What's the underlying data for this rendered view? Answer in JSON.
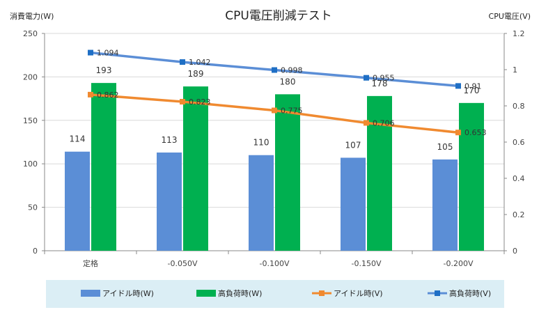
{
  "chart_data": {
    "type": "bar+line",
    "title": "CPU電圧削減テスト",
    "categories": [
      "定格",
      "-0.050V",
      "-0.100V",
      "-0.150V",
      "-0.200V"
    ],
    "y_left": {
      "label": "消費電力(W)",
      "min": 0,
      "max": 250,
      "step": 50,
      "ticks": [
        "0",
        "50",
        "100",
        "150",
        "200",
        "250"
      ]
    },
    "y_right": {
      "label": "CPU電圧(V)",
      "min": 0,
      "max": 1.2,
      "step": 0.2,
      "ticks": [
        "0",
        "0.2",
        "0.4",
        "0.6",
        "0.8",
        "1",
        "1.2"
      ]
    },
    "bar_series": [
      {
        "name": "アイドル時(W)",
        "color": "#5b8ed6",
        "values": [
          114,
          113,
          110,
          107,
          105
        ],
        "labels": [
          "114",
          "113",
          "110",
          "107",
          "105"
        ]
      },
      {
        "name": "高負荷時(W)",
        "color": "#00b050",
        "values": [
          193,
          189,
          180,
          178,
          170
        ],
        "labels": [
          "193",
          "189",
          "180",
          "178",
          "170"
        ]
      }
    ],
    "line_series": [
      {
        "name": "アイドル時(V)",
        "color": "#f08a30",
        "values": [
          0.862,
          0.823,
          0.775,
          0.706,
          0.653
        ],
        "labels": [
          "0.862",
          "0.823",
          "0.775",
          "0.706",
          "0.653"
        ]
      },
      {
        "name": "高負荷時(V)",
        "color": "#5b8ed6",
        "marker_color": "#1f6fc5",
        "values": [
          1.094,
          1.042,
          0.998,
          0.955,
          0.91
        ],
        "labels": [
          "1.094",
          "1.042",
          "0.998",
          "0.955",
          "0.91"
        ]
      }
    ],
    "legend": [
      "アイドル時(W)",
      "高負荷時(W)",
      "アイドル時(V)",
      "高負荷時(V)"
    ],
    "legend_position": "bottom",
    "grid": true
  }
}
